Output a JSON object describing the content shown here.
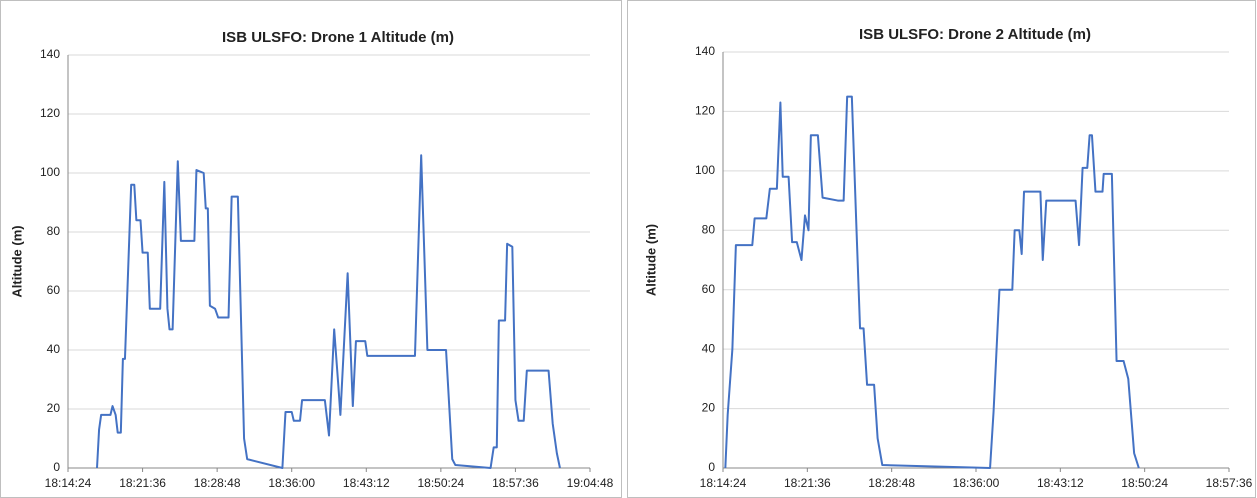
{
  "chart_data": [
    {
      "type": "line",
      "title": "ISB ULSFO: Drone 1 Altitude (m)",
      "y_label": "Altitude (m)",
      "color": "#4472c4",
      "grid": true,
      "ylim": [
        0,
        140
      ],
      "yticks": [
        0,
        20,
        40,
        60,
        80,
        100,
        120,
        140
      ],
      "xlim": [
        "18:14:24",
        "19:04:48"
      ],
      "xticks": [
        "18:14:24",
        "18:21:36",
        "18:28:48",
        "18:36:00",
        "18:43:12",
        "18:50:24",
        "18:57:36",
        "19:04:48"
      ],
      "x": [
        "18:17:12",
        "18:17:24",
        "18:17:36",
        "18:18:30",
        "18:18:42",
        "18:19:00",
        "18:19:12",
        "18:19:30",
        "18:19:42",
        "18:19:54",
        "18:20:30",
        "18:20:48",
        "18:21:00",
        "18:21:24",
        "18:21:36",
        "18:22:06",
        "18:22:18",
        "18:23:18",
        "18:23:42",
        "18:24:00",
        "18:24:12",
        "18:24:30",
        "18:25:00",
        "18:25:18",
        "18:26:36",
        "18:26:48",
        "18:27:30",
        "18:27:42",
        "18:27:54",
        "18:28:06",
        "18:28:36",
        "18:28:54",
        "18:29:54",
        "18:30:12",
        "18:30:48",
        "18:31:24",
        "18:31:42",
        "18:35:06",
        "18:35:24",
        "18:36:00",
        "18:36:12",
        "18:36:48",
        "18:37:00",
        "18:39:12",
        "18:39:36",
        "18:40:06",
        "18:40:30",
        "18:40:42",
        "18:41:24",
        "18:41:54",
        "18:42:12",
        "18:43:06",
        "18:43:18",
        "18:47:54",
        "18:48:30",
        "18:49:06",
        "18:50:54",
        "18:51:30",
        "18:51:48",
        "18:55:12",
        "18:55:30",
        "18:55:48",
        "18:56:00",
        "18:56:36",
        "18:56:48",
        "18:57:18",
        "18:57:36",
        "18:57:54",
        "18:58:24",
        "18:58:42",
        "19:00:48",
        "19:01:12",
        "19:01:36",
        "19:01:54"
      ],
      "values": [
        0,
        13,
        18,
        18,
        21,
        18,
        12,
        12,
        37,
        37,
        96,
        96,
        84,
        84,
        73,
        73,
        54,
        54,
        97,
        54,
        47,
        47,
        104,
        77,
        77,
        101,
        100,
        88,
        88,
        55,
        54,
        51,
        51,
        92,
        92,
        10,
        3,
        0,
        19,
        19,
        16,
        16,
        23,
        23,
        11,
        47,
        28,
        18,
        66,
        21,
        43,
        43,
        38,
        38,
        106,
        40,
        40,
        3,
        1,
        0,
        7,
        7,
        50,
        50,
        76,
        75,
        23,
        16,
        16,
        33,
        33,
        15,
        5,
        0
      ]
    },
    {
      "type": "line",
      "title": "ISB ULSFO: Drone 2 Altitude (m)",
      "y_label": "Altitude (m)",
      "color": "#4472c4",
      "grid": true,
      "ylim": [
        0,
        140
      ],
      "yticks": [
        0,
        20,
        40,
        60,
        80,
        100,
        120,
        140
      ],
      "xlim": [
        "18:14:24",
        "18:57:36"
      ],
      "xticks": [
        "18:14:24",
        "18:21:36",
        "18:28:48",
        "18:36:00",
        "18:43:12",
        "18:50:24",
        "18:57:36"
      ],
      "x": [
        "18:14:36",
        "18:14:48",
        "18:15:12",
        "18:15:30",
        "18:16:54",
        "18:17:06",
        "18:18:06",
        "18:18:24",
        "18:19:00",
        "18:19:18",
        "18:19:30",
        "18:20:00",
        "18:20:18",
        "18:20:42",
        "18:21:06",
        "18:21:24",
        "18:21:42",
        "18:21:54",
        "18:22:30",
        "18:22:54",
        "18:24:12",
        "18:24:42",
        "18:25:00",
        "18:25:24",
        "18:25:48",
        "18:26:06",
        "18:26:24",
        "18:26:42",
        "18:27:18",
        "18:27:36",
        "18:28:00",
        "18:37:12",
        "18:37:30",
        "18:38:00",
        "18:39:06",
        "18:39:18",
        "18:39:42",
        "18:39:54",
        "18:40:06",
        "18:41:30",
        "18:41:42",
        "18:42:00",
        "18:44:30",
        "18:44:48",
        "18:45:06",
        "18:45:30",
        "18:45:42",
        "18:45:54",
        "18:46:12",
        "18:46:48",
        "18:46:54",
        "18:47:36",
        "18:48:00",
        "18:48:36",
        "18:49:00",
        "18:49:30",
        "18:49:54"
      ],
      "values": [
        0,
        18,
        40,
        75,
        75,
        84,
        84,
        94,
        94,
        123,
        98,
        98,
        76,
        76,
        70,
        85,
        80,
        112,
        112,
        91,
        90,
        90,
        125,
        125,
        80,
        47,
        47,
        28,
        28,
        10,
        1,
        0,
        19,
        60,
        60,
        80,
        80,
        72,
        93,
        93,
        70,
        90,
        90,
        75,
        101,
        101,
        112,
        112,
        93,
        93,
        99,
        99,
        36,
        36,
        30,
        5,
        0
      ]
    }
  ]
}
